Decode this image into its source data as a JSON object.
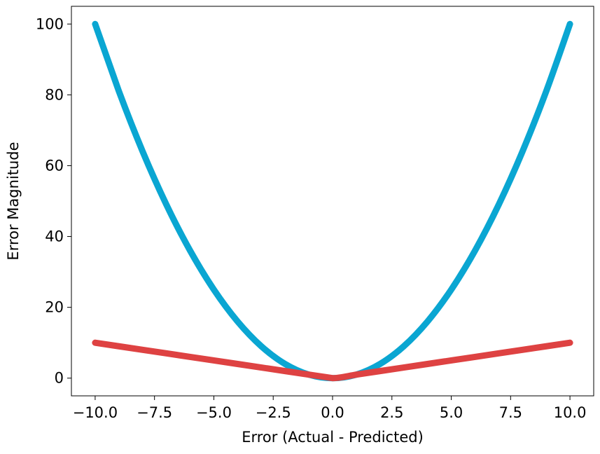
{
  "chart_data": {
    "type": "line",
    "title": "",
    "xlabel": "Error (Actual - Predicted)",
    "ylabel": "Error Magnitude",
    "xlim": [
      -11.0,
      11.0
    ],
    "ylim": [
      -5.0,
      105.0
    ],
    "x_ticks": [
      -10.0,
      -7.5,
      -5.0,
      -2.5,
      0.0,
      2.5,
      5.0,
      7.5,
      10.0
    ],
    "x_tick_labels": [
      "−10.0",
      "−7.5",
      "−5.0",
      "−2.5",
      "0.0",
      "2.5",
      "5.0",
      "7.5",
      "10.0"
    ],
    "y_ticks": [
      0,
      20,
      40,
      60,
      80,
      100
    ],
    "y_tick_labels": [
      "0",
      "20",
      "40",
      "60",
      "80",
      "100"
    ],
    "grid": false,
    "legend": "none",
    "series": [
      {
        "color": "#0aa6d2",
        "x": [
          -10,
          -9,
          -8,
          -7,
          -6,
          -5,
          -4,
          -3,
          -2,
          -1,
          0,
          1,
          2,
          3,
          4,
          5,
          6,
          7,
          8,
          9,
          10
        ],
        "y": [
          100,
          81,
          64,
          49,
          36,
          25,
          16,
          9,
          4,
          1,
          0,
          1,
          4,
          9,
          16,
          25,
          36,
          49,
          64,
          81,
          100
        ]
      },
      {
        "color": "#de4242",
        "x": [
          -10,
          -9,
          -8,
          -7,
          -6,
          -5,
          -4,
          -3,
          -2,
          -1,
          0,
          1,
          2,
          3,
          4,
          5,
          6,
          7,
          8,
          9,
          10
        ],
        "y": [
          10,
          9,
          8,
          7,
          6,
          5,
          4,
          3,
          2,
          1,
          0,
          1,
          2,
          3,
          4,
          5,
          6,
          7,
          8,
          9,
          10
        ]
      }
    ]
  }
}
